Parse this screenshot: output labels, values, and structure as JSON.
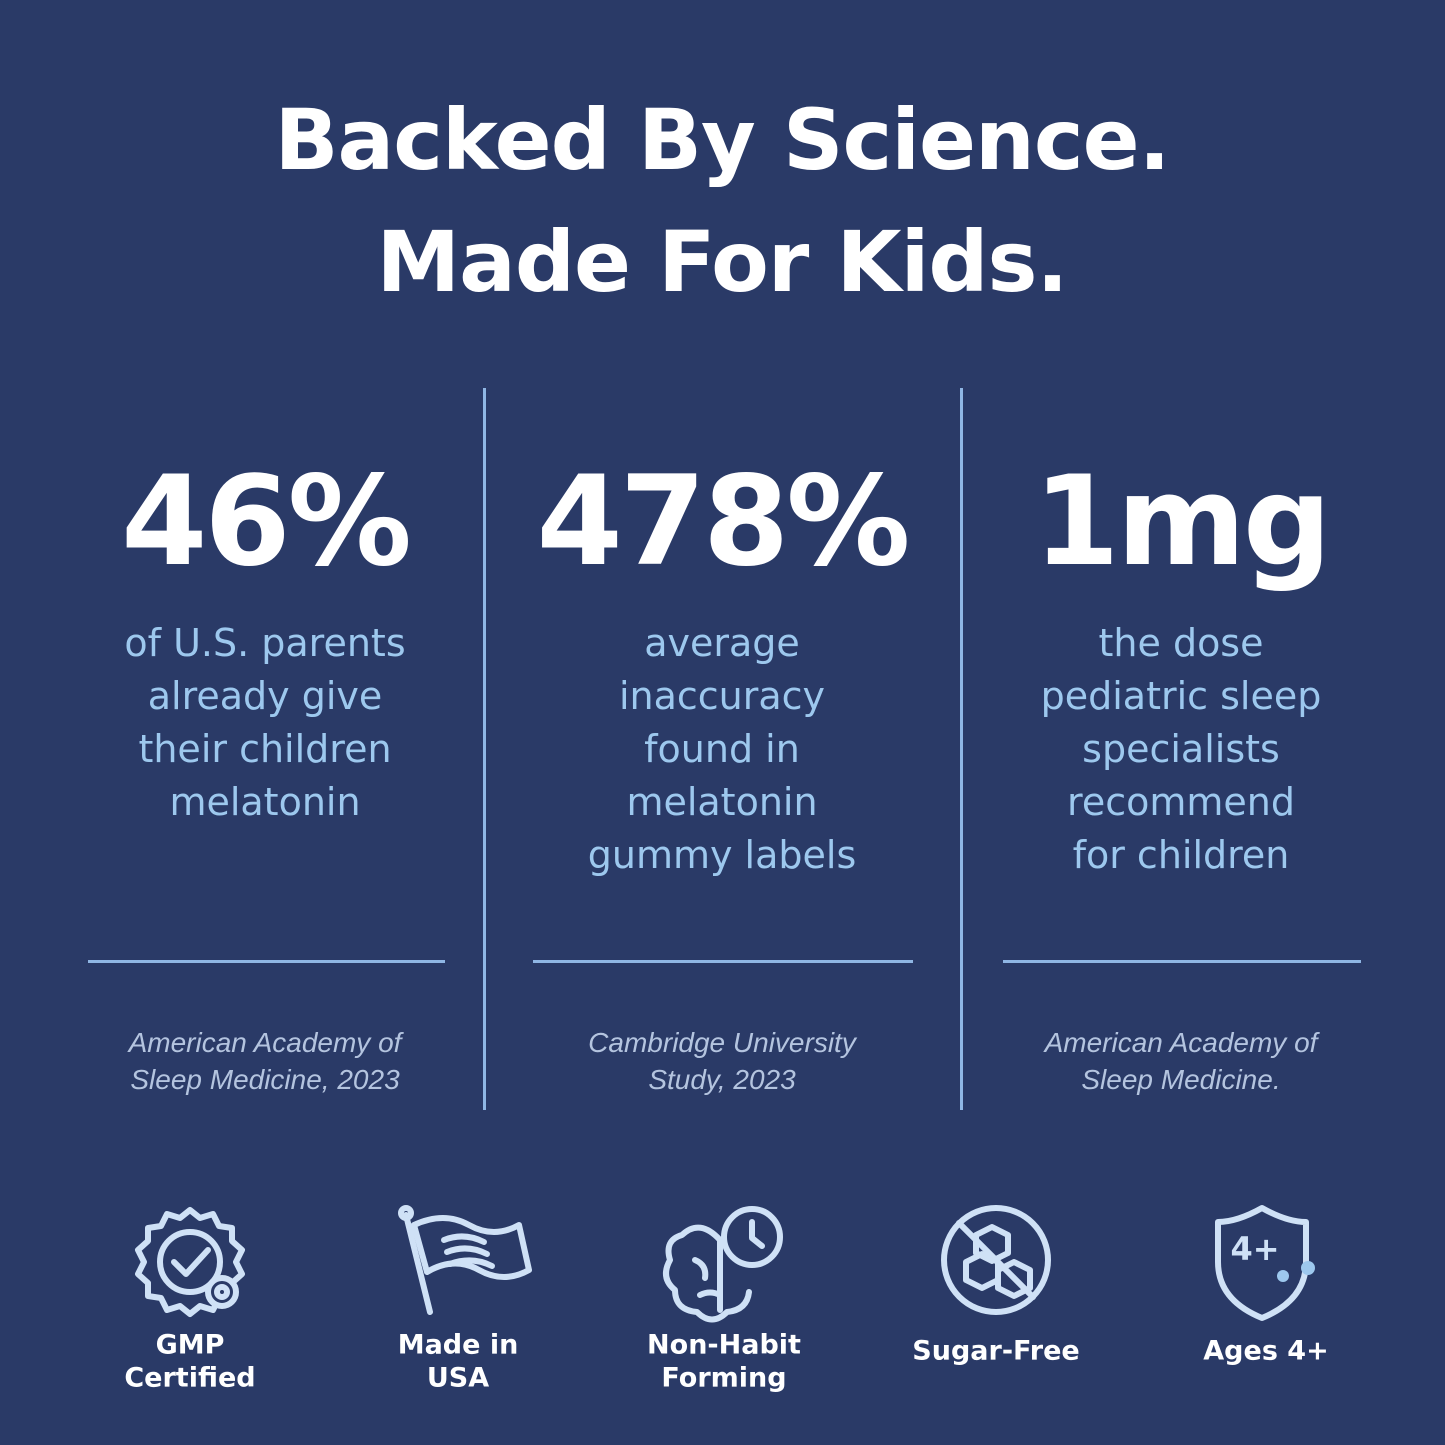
{
  "header": {
    "title": [
      "Backed By Science.",
      "Made For Kids."
    ]
  },
  "stats": [
    {
      "value": "46%",
      "description": [
        "of U.S. parents",
        "already give",
        "their children",
        "melatonin"
      ],
      "source": [
        "American Academy of",
        "Sleep Medicine, 2023"
      ]
    },
    {
      "value": "478%",
      "description": [
        "average",
        "inaccuracy",
        "found in",
        "melatonin",
        "gummy labels"
      ],
      "source": [
        "Cambridge University",
        "Study, 2023"
      ]
    },
    {
      "value": "1mg",
      "description": [
        "the dose",
        "pediatric sleep",
        "specialists",
        "recommend",
        "for children"
      ],
      "source": [
        "American Academy of",
        "Sleep Medicine."
      ]
    }
  ],
  "badges": [
    {
      "label": [
        "GMP",
        "Certified"
      ]
    },
    {
      "label": [
        "Made in",
        "USA"
      ]
    },
    {
      "label": [
        "Non-Habit",
        "Forming"
      ]
    },
    {
      "label": [
        "Sugar-Free"
      ]
    },
    {
      "label": [
        "Ages 4+"
      ],
      "icon_text": "4+"
    }
  ]
}
